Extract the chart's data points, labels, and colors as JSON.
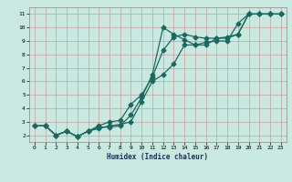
{
  "xlabel": "Humidex (Indice chaleur)",
  "bg_color": "#c8e8e0",
  "grid_color": "#c8a0a0",
  "line_color": "#1a6860",
  "xlim": [
    -0.5,
    23.5
  ],
  "ylim": [
    1.5,
    11.5
  ],
  "xticks": [
    0,
    1,
    2,
    3,
    4,
    5,
    6,
    7,
    8,
    9,
    10,
    11,
    12,
    13,
    14,
    15,
    16,
    17,
    18,
    19,
    20,
    21,
    22,
    23
  ],
  "yticks": [
    2,
    3,
    4,
    5,
    6,
    7,
    8,
    9,
    10,
    11
  ],
  "line1_x": [
    0,
    1,
    2,
    3,
    4,
    5,
    6,
    7,
    8,
    9,
    10,
    11,
    12,
    13,
    14,
    15,
    16,
    17,
    18,
    19,
    20,
    21,
    22,
    23
  ],
  "line1_y": [
    2.7,
    2.7,
    2.0,
    2.3,
    1.9,
    2.3,
    2.6,
    2.6,
    2.7,
    3.5,
    4.8,
    6.5,
    10.0,
    9.5,
    9.1,
    8.7,
    8.9,
    9.0,
    9.0,
    10.3,
    11.0,
    11.0,
    11.0,
    11.0
  ],
  "line2_x": [
    0,
    1,
    2,
    3,
    4,
    5,
    6,
    7,
    8,
    9,
    10,
    11,
    12,
    13,
    14,
    15,
    16,
    17,
    18,
    19,
    20,
    21,
    22,
    23
  ],
  "line2_y": [
    2.7,
    2.7,
    2.0,
    2.3,
    1.9,
    2.3,
    2.7,
    3.0,
    3.1,
    4.3,
    5.0,
    6.3,
    8.3,
    9.3,
    9.5,
    9.3,
    9.2,
    9.2,
    9.3,
    9.5,
    11.0,
    11.0,
    11.0,
    11.0
  ],
  "line3_x": [
    0,
    1,
    2,
    3,
    4,
    5,
    6,
    7,
    8,
    9,
    10,
    11,
    12,
    13,
    14,
    15,
    16,
    17,
    18,
    19,
    20,
    21,
    22,
    23
  ],
  "line3_y": [
    2.7,
    2.7,
    2.0,
    2.3,
    1.9,
    2.3,
    2.5,
    2.7,
    2.8,
    3.0,
    4.5,
    6.0,
    6.5,
    7.3,
    8.7,
    8.7,
    8.7,
    9.2,
    9.2,
    9.5,
    11.0,
    11.0,
    11.0,
    11.0
  ]
}
